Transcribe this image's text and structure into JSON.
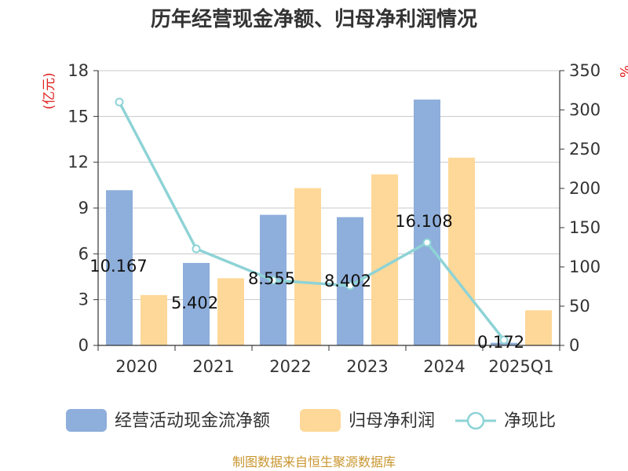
{
  "chart_data": {
    "type": "bar",
    "title": "历年经营现金净额、归母净利润情况",
    "categories": [
      "2020",
      "2021",
      "2022",
      "2023",
      "2024",
      "2025Q1"
    ],
    "left_axis": {
      "unit": "(亿元)",
      "ylim": [
        0,
        18
      ],
      "ticks": [
        "0",
        "3",
        "6",
        "9",
        "12",
        "15",
        "18"
      ]
    },
    "right_axis": {
      "unit": "%",
      "ylim": [
        0,
        350
      ],
      "ticks": [
        "0",
        "50",
        "100",
        "150",
        "200",
        "250",
        "300",
        "350"
      ]
    },
    "grid": true,
    "legend_position": "bottom",
    "series": [
      {
        "name": "经营活动现金流净额",
        "type": "bar",
        "axis": "left",
        "color": "#8eaedb",
        "values": [
          10.167,
          5.402,
          8.555,
          8.402,
          16.108,
          0.172
        ],
        "labels": [
          "10.167",
          "5.402",
          "8.555",
          "8.402",
          "16.108",
          "0.172"
        ]
      },
      {
        "name": "归母净利润",
        "type": "bar",
        "axis": "left",
        "color": "#fed898",
        "values": [
          3.3,
          4.4,
          10.3,
          11.2,
          12.3,
          2.3
        ]
      },
      {
        "name": "净现比",
        "type": "line",
        "axis": "right",
        "color": "#8ed3d6",
        "values": [
          310,
          123,
          83,
          76,
          131,
          7
        ]
      }
    ]
  },
  "source": "制图数据来自恒生聚源数据库"
}
